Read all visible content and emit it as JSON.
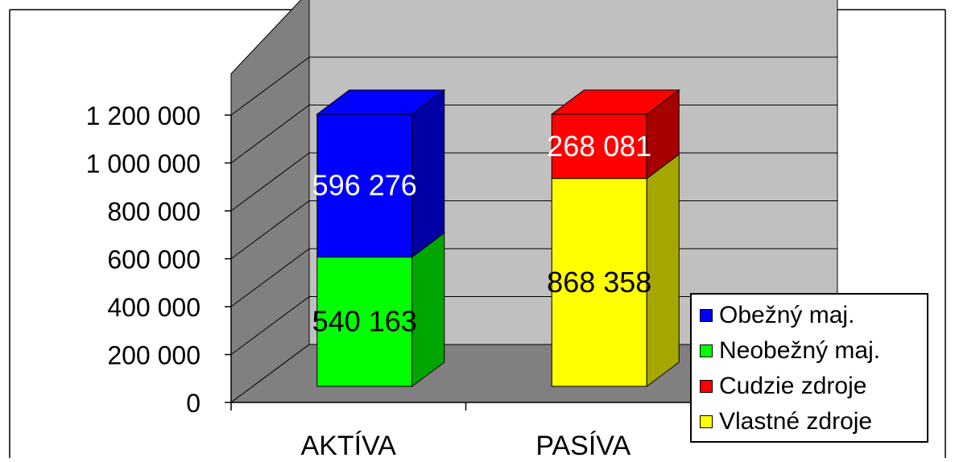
{
  "chart_data": {
    "type": "bar",
    "stacked": true,
    "three_d": true,
    "categories": [
      "AKTÍVA",
      "PASÍVA"
    ],
    "series": [
      {
        "name": "Neobežný maj.",
        "color": "#00ff00",
        "values": [
          540163,
          null
        ]
      },
      {
        "name": "Obežný maj.",
        "color": "#0000ff",
        "values": [
          596276,
          null
        ]
      },
      {
        "name": "Vlastné zdroje",
        "color": "#ffff00",
        "values": [
          null,
          868358
        ]
      },
      {
        "name": "Cudzie zdroje",
        "color": "#ff0000",
        "values": [
          null,
          268081
        ]
      }
    ],
    "data_labels": [
      {
        "text": "540 163",
        "color": "#000000"
      },
      {
        "text": "596 276",
        "color": "#ffffff"
      },
      {
        "text": "868 358",
        "color": "#000000"
      },
      {
        "text": "268 081",
        "color": "#ffffff"
      }
    ],
    "y_ticks": [
      "0",
      "200 000",
      "400 000",
      "600 000",
      "800 000",
      "1 000 000",
      "1 200 000"
    ],
    "ylim": [
      0,
      1200000
    ],
    "grid": true,
    "title": "",
    "xlabel": "",
    "ylabel": "",
    "legend_position": "bottom-right",
    "legend": [
      "Obežný maj.",
      "Neobežný maj.",
      "Cudzie zdroje",
      "Vlastné zdroje"
    ],
    "legend_colors": [
      "#0000ff",
      "#00ff00",
      "#ff0000",
      "#ffff00"
    ],
    "wall_color": "#c0c0c0",
    "side_wall_color": "#808080",
    "floor_color": "#808080"
  }
}
